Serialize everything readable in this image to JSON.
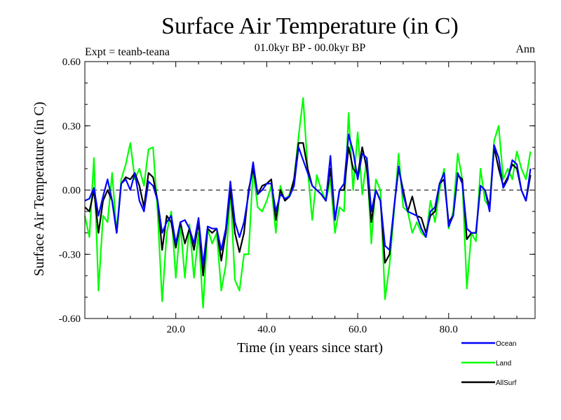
{
  "chart_data": {
    "type": "line",
    "title": "Surface Air Temperature (in C)",
    "subtitle": "01.0kyr BP - 00.0kyr BP",
    "left_label": "Expt = teanb-teana",
    "right_label": "Ann",
    "xlabel": "Time (in years since start)",
    "ylabel": "Surface Air Temperature (in C)",
    "xlim": [
      0,
      99
    ],
    "ylim": [
      -0.6,
      0.6
    ],
    "x_ticks": [
      20,
      40,
      60,
      80
    ],
    "x_tick_labels": [
      "20.0",
      "40.0",
      "60.0",
      "80.0"
    ],
    "y_ticks": [
      -0.6,
      -0.3,
      0.0,
      0.3,
      0.6
    ],
    "y_tick_labels": [
      "-0.60",
      "-0.30",
      "0.00",
      "0.30",
      "0.60"
    ],
    "reference_line": 0,
    "legend_position": "bottom-right",
    "series": [
      {
        "name": "Land",
        "color": "#00ff00",
        "values": [
          -0.12,
          -0.22,
          0.15,
          -0.47,
          -0.12,
          -0.15,
          0.08,
          -0.2,
          0.05,
          0.12,
          0.22,
          0.05,
          0.1,
          0.02,
          0.19,
          0.2,
          -0.1,
          -0.52,
          -0.2,
          -0.1,
          -0.41,
          -0.16,
          -0.41,
          -0.16,
          -0.41,
          -0.2,
          -0.55,
          -0.18,
          -0.25,
          -0.2,
          -0.47,
          -0.35,
          0.0,
          -0.42,
          -0.47,
          -0.3,
          -0.3,
          0.1,
          -0.08,
          -0.1,
          -0.05,
          0.02,
          -0.2,
          0.02,
          -0.05,
          -0.02,
          0.05,
          0.25,
          0.43,
          0.1,
          -0.14,
          0.07,
          0.0,
          -0.05,
          0.05,
          -0.2,
          -0.08,
          -0.1,
          0.36,
          0.0,
          0.27,
          -0.02,
          0.15,
          -0.25,
          0.05,
          0.0,
          -0.51,
          -0.35,
          -0.1,
          0.17,
          -0.08,
          -0.1,
          -0.2,
          -0.15,
          -0.2,
          -0.22,
          -0.05,
          -0.15,
          0.0,
          0.1,
          -0.18,
          -0.1,
          0.17,
          0.05,
          -0.46,
          -0.2,
          -0.24,
          0.1,
          -0.05,
          -0.08,
          0.23,
          0.3,
          0.05,
          0.1,
          0.05,
          0.18,
          0.1,
          0.05,
          0.18
        ]
      },
      {
        "name": "AllSurf",
        "color": "#000000",
        "values": [
          -0.08,
          -0.1,
          0.0,
          -0.2,
          -0.05,
          0.0,
          -0.05,
          -0.2,
          0.03,
          0.06,
          0.05,
          0.08,
          0.02,
          -0.08,
          0.08,
          0.06,
          -0.05,
          -0.28,
          -0.12,
          -0.15,
          -0.27,
          -0.15,
          -0.25,
          -0.18,
          -0.28,
          -0.15,
          -0.4,
          -0.18,
          -0.2,
          -0.18,
          -0.33,
          -0.2,
          0.0,
          -0.2,
          -0.29,
          -0.2,
          0.0,
          0.1,
          -0.02,
          0.02,
          0.03,
          0.05,
          -0.14,
          0.0,
          -0.05,
          -0.03,
          0.05,
          0.22,
          0.22,
          0.1,
          0.02,
          0.0,
          -0.02,
          -0.05,
          0.1,
          -0.14,
          0.0,
          0.0,
          0.2,
          0.1,
          0.07,
          0.2,
          0.1,
          -0.15,
          0.0,
          -0.05,
          -0.34,
          -0.3,
          -0.08,
          0.1,
          0.0,
          -0.1,
          -0.03,
          -0.12,
          -0.13,
          -0.2,
          -0.12,
          -0.1,
          0.03,
          0.05,
          -0.15,
          -0.12,
          0.07,
          0.05,
          -0.23,
          -0.2,
          -0.2,
          0.02,
          0.0,
          -0.08,
          0.2,
          0.1,
          0.02,
          0.06,
          0.12,
          0.1,
          0.0,
          -0.05,
          0.07
        ]
      },
      {
        "name": "Ocean",
        "color": "#0000ff",
        "values": [
          -0.05,
          -0.04,
          0.01,
          -0.12,
          -0.03,
          0.05,
          -0.05,
          -0.2,
          0.03,
          0.05,
          0.0,
          0.08,
          -0.05,
          -0.1,
          0.04,
          0.02,
          -0.05,
          -0.2,
          -0.15,
          -0.12,
          -0.25,
          -0.15,
          -0.14,
          -0.18,
          -0.25,
          -0.13,
          -0.35,
          -0.17,
          -0.18,
          -0.18,
          -0.28,
          -0.18,
          0.04,
          -0.15,
          -0.22,
          -0.15,
          -0.02,
          0.13,
          -0.02,
          0.0,
          0.03,
          0.03,
          -0.1,
          -0.02,
          -0.04,
          -0.03,
          0.02,
          0.2,
          0.14,
          0.08,
          0.02,
          0.0,
          -0.02,
          -0.05,
          0.16,
          -0.14,
          0.0,
          0.03,
          0.26,
          0.18,
          0.05,
          0.17,
          0.15,
          -0.1,
          0.0,
          -0.05,
          -0.26,
          -0.28,
          -0.08,
          0.11,
          -0.02,
          -0.1,
          -0.11,
          -0.12,
          -0.18,
          -0.22,
          -0.1,
          -0.08,
          0.03,
          0.08,
          -0.17,
          -0.12,
          0.08,
          0.03,
          -0.18,
          -0.2,
          -0.2,
          0.02,
          0.0,
          -0.1,
          0.21,
          0.15,
          0.01,
          0.05,
          0.14,
          0.12,
          0.0,
          -0.05,
          0.1
        ]
      }
    ],
    "legend_order": [
      "Ocean",
      "Land",
      "AllSurf"
    ]
  }
}
